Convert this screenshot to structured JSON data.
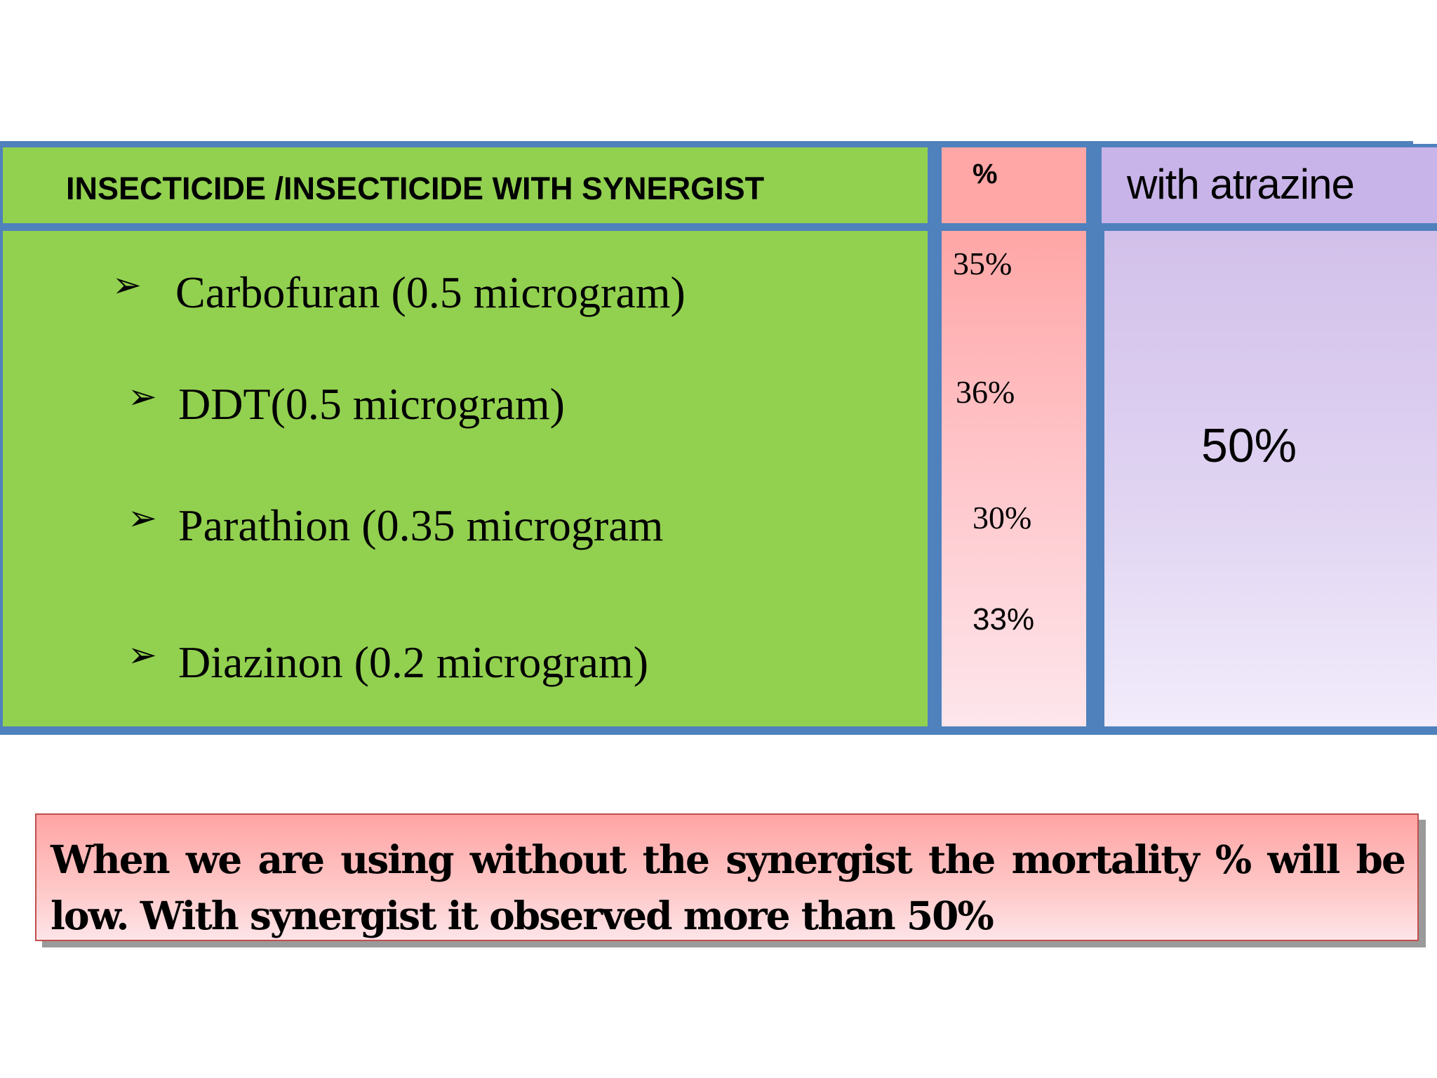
{
  "table": {
    "headers": {
      "insecticide": "INSECTICIDE /INSECTICIDE WITH SYNERGIST",
      "percent": "%",
      "with_atrazine": "with atrazine"
    },
    "rows": [
      {
        "bullet": "➢",
        "name": "Carbofuran (0.5 microgram)",
        "percent": "35%"
      },
      {
        "bullet": "➢",
        "name": "DDT(0.5 microgram)",
        "percent": "36%"
      },
      {
        "bullet": "➢",
        "name": "Parathion (0.35 microgram",
        "percent": "30%"
      },
      {
        "bullet": "➢",
        "name": "Diazinon (0.2 microgram)",
        "percent": "33%"
      }
    ],
    "with_atrazine_value": "50%",
    "colors": {
      "border": "#4f81bd",
      "green": "#92d050",
      "pink": "#ffa6a6",
      "purple": "#c8b4e8"
    }
  },
  "note": {
    "text": "When we are using without the synergist the mortality % will be low. With synergist it observed more than 50%",
    "border_color": "#c0504d"
  }
}
